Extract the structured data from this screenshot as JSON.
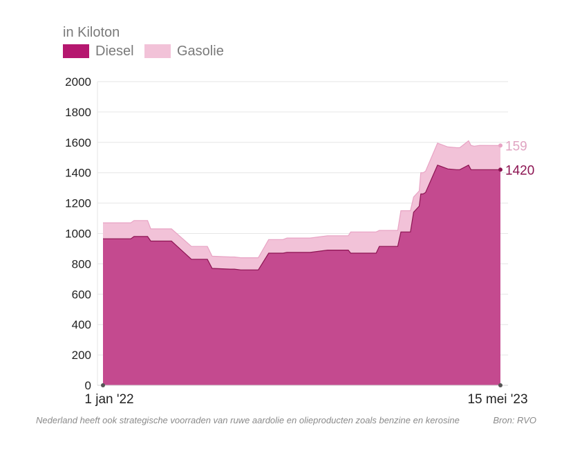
{
  "unit_label": "in Kiloton",
  "note": "Nederland heeft ook strategische voorraden van ruwe aardolie en olieproducten zoals benzine en kerosine",
  "source": "Bron: RVO",
  "colors": {
    "diesel": "#c44a8f",
    "diesel_line": "#8c1452",
    "diesel_legend": "#b5176f",
    "gasolie": "#f2c2d8",
    "gasolie_line": "#e8a3c4",
    "grid": "#e6e6e6"
  },
  "chart_data": {
    "type": "area",
    "stacked": true,
    "x_start_label": "1 jan '22",
    "x_end_label": "15 mei '23",
    "x_domain": [
      "2022-01-01",
      "2023-05-15"
    ],
    "ylim": [
      0,
      2000
    ],
    "yticks": [
      0,
      200,
      400,
      600,
      800,
      1000,
      1200,
      1400,
      1600,
      1800,
      2000
    ],
    "grid": true,
    "legend": {
      "placement": "top-left",
      "entries": [
        "Diesel",
        "Gasolie"
      ]
    },
    "x": [
      "2022-01-01",
      "2022-01-16",
      "2022-02-05",
      "2022-02-09",
      "2022-02-26",
      "2022-03-02",
      "2022-03-25",
      "2022-03-28",
      "2022-04-22",
      "2022-04-26",
      "2022-05-12",
      "2022-05-18",
      "2022-06-10",
      "2022-06-15",
      "2022-06-23",
      "2022-07-01",
      "2022-07-15",
      "2022-07-28",
      "2022-08-15",
      "2022-08-20",
      "2022-09-10",
      "2022-09-18",
      "2022-10-10",
      "2022-10-15",
      "2022-11-05",
      "2022-11-08",
      "2022-11-22",
      "2022-11-26",
      "2022-12-10",
      "2022-12-14",
      "2022-12-26",
      "2023-01-06",
      "2023-01-10",
      "2023-01-22",
      "2023-01-26",
      "2023-02-02",
      "2023-02-04",
      "2023-02-07",
      "2023-02-10",
      "2023-02-25",
      "2023-03-10",
      "2023-03-21",
      "2023-03-25",
      "2023-04-05",
      "2023-04-08",
      "2023-04-12",
      "2023-04-19",
      "2023-05-15"
    ],
    "series": [
      {
        "name": "Diesel",
        "values": [
          965,
          965,
          965,
          980,
          980,
          950,
          950,
          950,
          830,
          830,
          830,
          770,
          765,
          765,
          760,
          760,
          760,
          870,
          870,
          875,
          875,
          875,
          890,
          890,
          890,
          870,
          870,
          870,
          870,
          915,
          915,
          915,
          1010,
          1010,
          1140,
          1180,
          1260,
          1260,
          1270,
          1450,
          1425,
          1420,
          1420,
          1450,
          1420,
          1420,
          1420,
          1420
        ]
      },
      {
        "name": "Gasolie",
        "values": [
          105,
          105,
          105,
          105,
          105,
          80,
          80,
          80,
          85,
          85,
          85,
          80,
          80,
          80,
          80,
          80,
          80,
          90,
          90,
          95,
          95,
          95,
          95,
          95,
          95,
          140,
          140,
          140,
          140,
          105,
          105,
          105,
          140,
          140,
          100,
          100,
          140,
          140,
          140,
          145,
          145,
          145,
          145,
          160,
          160,
          155,
          160,
          159
        ]
      }
    ],
    "end_labels": {
      "Diesel": "1420",
      "Gasolie": "159"
    }
  }
}
